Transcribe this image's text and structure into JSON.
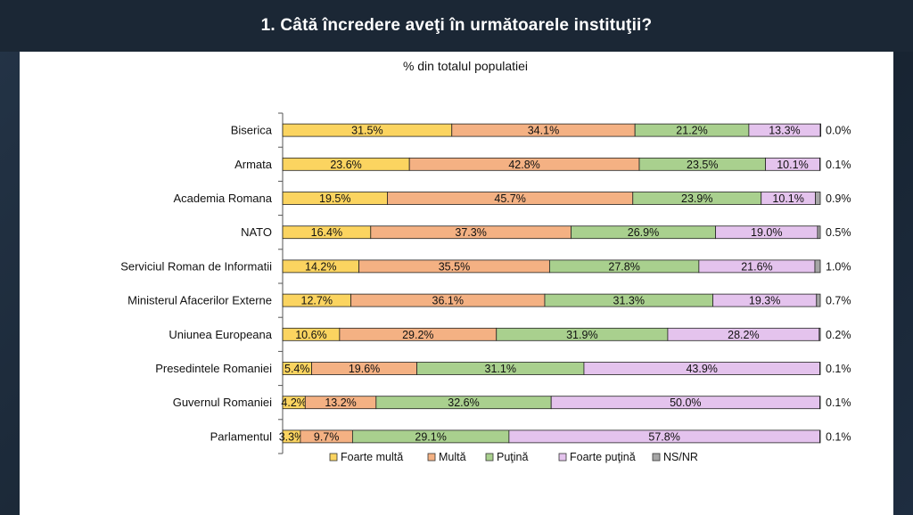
{
  "header": {
    "title": "1. Câtă încredere aveţi în următoarele instituţii?"
  },
  "chart_data": {
    "type": "bar",
    "orientation": "horizontal",
    "stacked": true,
    "title": "% din totalul populatiei",
    "categories": [
      "Biserica",
      "Armata",
      "Academia Romana",
      "NATO",
      "Serviciul Roman de Informatii",
      "Ministerul Afacerilor Externe",
      "Uniunea Europeana",
      "Presedintele Romaniei",
      "Guvernul Romaniei",
      "Parlamentul"
    ],
    "series": [
      {
        "name": "Foarte multă",
        "color": "#fbd460",
        "values": [
          31.5,
          23.6,
          19.5,
          16.4,
          14.2,
          12.7,
          10.6,
          5.4,
          4.2,
          3.3
        ]
      },
      {
        "name": "Multă",
        "color": "#f4b183",
        "values": [
          34.1,
          42.8,
          45.7,
          37.3,
          35.5,
          36.1,
          29.2,
          19.6,
          13.2,
          9.7
        ]
      },
      {
        "name": "Puţină",
        "color": "#a9d08e",
        "values": [
          21.2,
          23.5,
          23.9,
          26.9,
          27.8,
          31.3,
          31.9,
          31.1,
          32.6,
          29.1
        ]
      },
      {
        "name": "Foarte puţină",
        "color": "#e4c3ed",
        "values": [
          13.3,
          10.1,
          10.1,
          19.0,
          21.6,
          19.3,
          28.2,
          43.9,
          50.0,
          57.8
        ]
      },
      {
        "name": "NS/NR",
        "color": "#a6a6a6",
        "values": [
          0.0,
          0.1,
          0.9,
          0.5,
          1.0,
          0.7,
          0.2,
          0.1,
          0.1,
          0.1
        ]
      }
    ],
    "xlim": [
      0,
      100
    ],
    "legend_position": "bottom",
    "grid": false
  }
}
